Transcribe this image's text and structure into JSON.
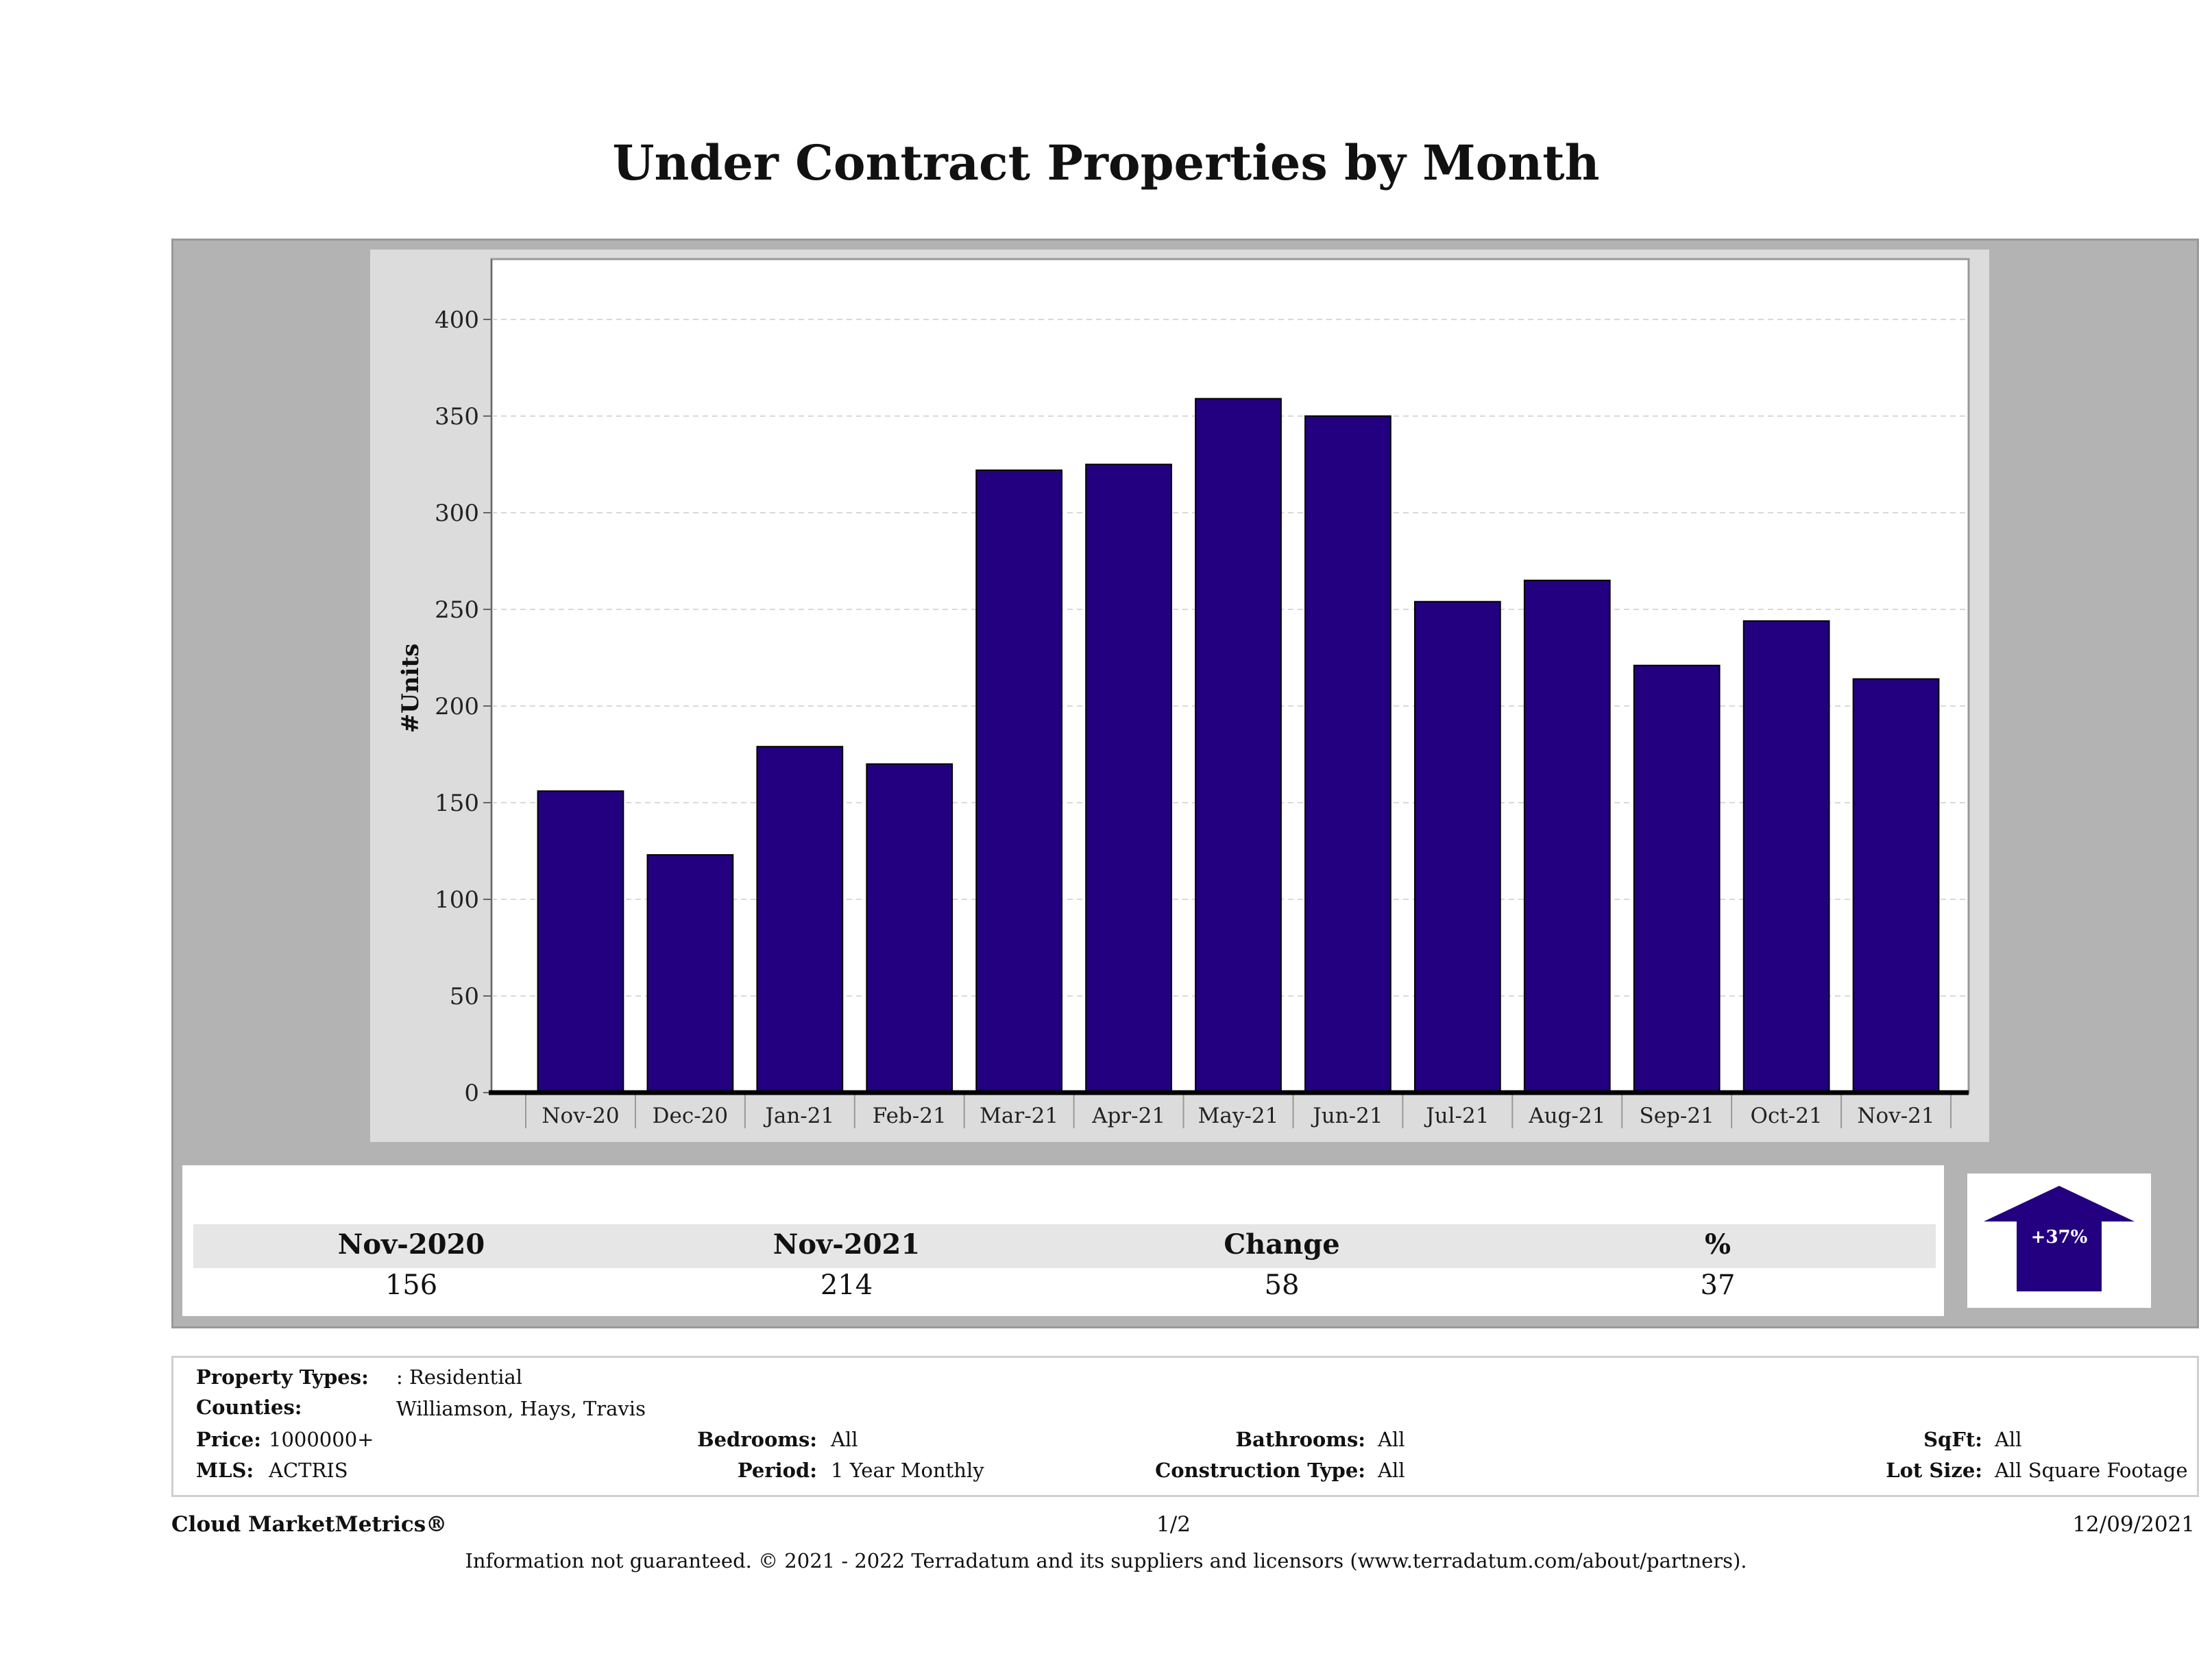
{
  "title": "Under Contract Properties by Month",
  "chart_data": {
    "type": "bar",
    "categories": [
      "Nov-20",
      "Dec-20",
      "Jan-21",
      "Feb-21",
      "Mar-21",
      "Apr-21",
      "May-21",
      "Jun-21",
      "Jul-21",
      "Aug-21",
      "Sep-21",
      "Oct-21",
      "Nov-21"
    ],
    "values": [
      156,
      123,
      179,
      170,
      322,
      325,
      359,
      350,
      254,
      265,
      221,
      244,
      214
    ],
    "ylabel": "#Units",
    "xlabel": "",
    "ylim": [
      0,
      430
    ],
    "yticks": [
      0,
      50,
      100,
      150,
      200,
      250,
      300,
      350,
      400
    ],
    "bar_color": "#23007f",
    "grid": true
  },
  "summary": {
    "headers": [
      "Nov-2020",
      "Nov-2021",
      "Change",
      "%"
    ],
    "values": [
      "156",
      "214",
      "58",
      "37"
    ],
    "badge": "+37%",
    "badge_color": "#23007f"
  },
  "filters": {
    "property_types_label": "Property Types:",
    "property_types_value": ": Residential",
    "counties_label": "Counties:",
    "counties_value": "Williamson, Hays, Travis",
    "price_label": "Price:",
    "price_value": "1000000+",
    "mls_label": "MLS:",
    "mls_value": "ACTRIS",
    "bedrooms_label": "Bedrooms:",
    "bedrooms_value": "All",
    "period_label": "Period:",
    "period_value": "1 Year Monthly",
    "bathrooms_label": "Bathrooms:",
    "bathrooms_value": "All",
    "construction_label": "Construction Type:",
    "construction_value": "All",
    "sqft_label": "SqFt:",
    "sqft_value": "All",
    "lotsize_label": "Lot Size:",
    "lotsize_value": "All Square Footage"
  },
  "footer": {
    "brand": "Cloud MarketMetrics®",
    "page": "1/2",
    "date": "12/09/2021",
    "note": "Information not guaranteed. © 2021 - 2022 Terradatum and its suppliers and licensors (www.terradatum.com/about/partners)."
  }
}
